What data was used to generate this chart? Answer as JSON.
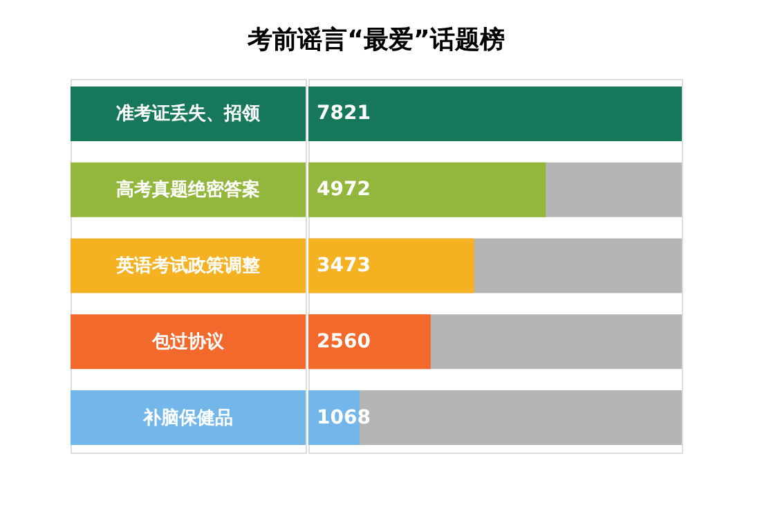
{
  "chart_data": {
    "type": "bar",
    "orientation": "horizontal",
    "title": "考前谣言“最爱”话题榜",
    "categories": [
      "准考证丢失、招领",
      "高考真题绝密答案",
      "英语考试政策调整",
      "包过协议",
      "补脑保健品"
    ],
    "values": [
      7821,
      4972,
      3473,
      2560,
      1068
    ],
    "colors": [
      "#16775a",
      "#93b63c",
      "#f4b223",
      "#f2692b",
      "#72b6ea"
    ],
    "data_labels": true
  }
}
